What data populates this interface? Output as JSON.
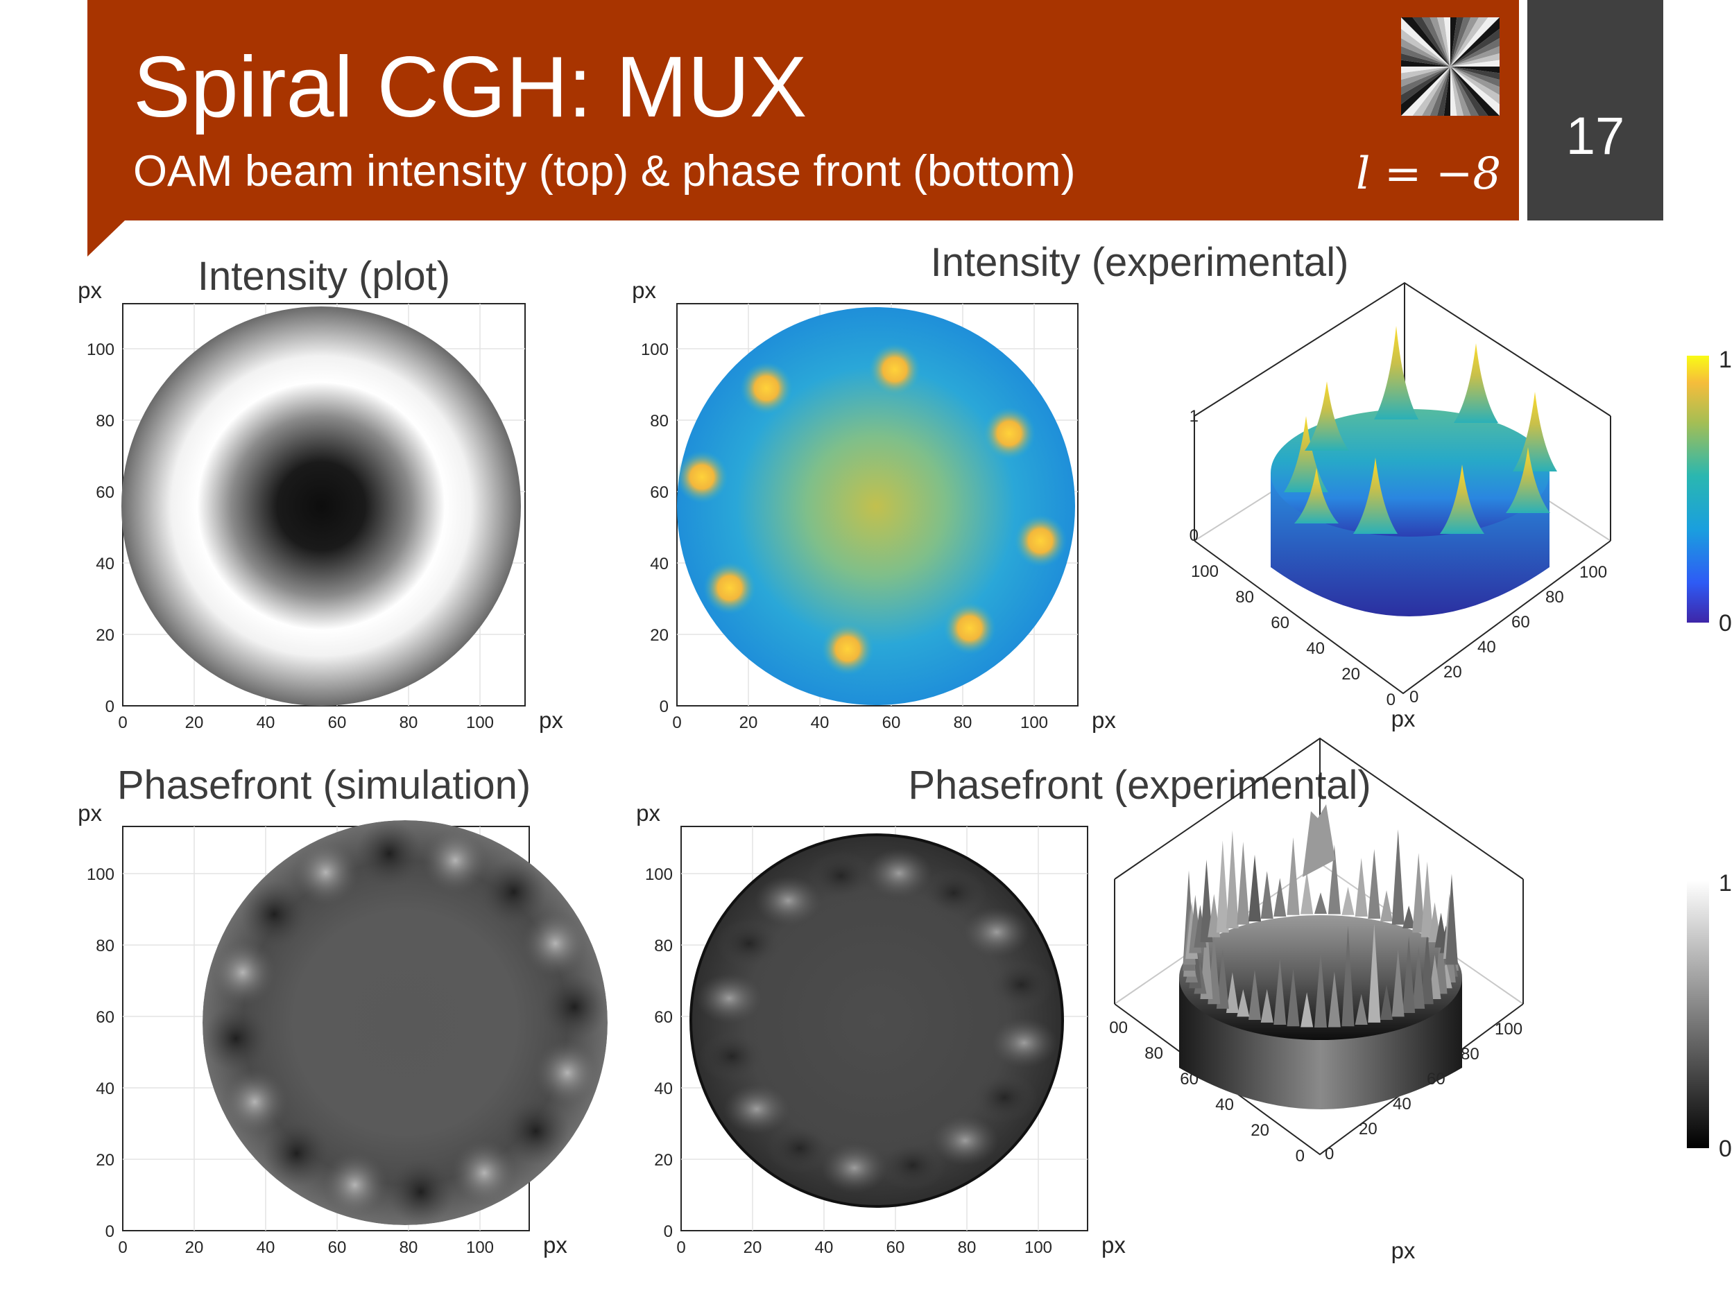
{
  "slide": {
    "title": "Spiral CGH: MUX",
    "subtitle": "OAM beam intensity (top) & phase front (bottom)",
    "equation": "l = −8",
    "page_number": "17"
  },
  "colors": {
    "header_bg": "#a83400",
    "page_box_bg": "#404040",
    "text_on_dark": "#ffffff"
  },
  "panels": {
    "intensity_plot": {
      "title": "Intensity (plot)",
      "xunit": "px",
      "yunit": "px",
      "xticks": [
        "0",
        "20",
        "40",
        "60",
        "80",
        "100"
      ],
      "yticks": [
        "0",
        "20",
        "40",
        "60",
        "80",
        "100"
      ]
    },
    "intensity_experimental": {
      "title": "Intensity (experimental)",
      "xunit": "px",
      "yunit": "px",
      "xticks": [
        "0",
        "20",
        "40",
        "60",
        "80",
        "100"
      ],
      "yticks": [
        "0",
        "20",
        "40",
        "60",
        "80",
        "100"
      ],
      "surface_z_ticks": [
        "0",
        "1"
      ],
      "surface_left_ticks": [
        "100",
        "80",
        "60",
        "40",
        "20",
        "0"
      ],
      "surface_right_ticks": [
        "0",
        "20",
        "40",
        "60",
        "80",
        "100"
      ],
      "surface_axis_label": "px",
      "colorbar": {
        "min_label": "0",
        "max_label": "1",
        "colormap": "parula"
      }
    },
    "phasefront_simulation": {
      "title": "Phasefront (simulation)",
      "xunit": "px",
      "yunit": "px",
      "xticks": [
        "0",
        "20",
        "40",
        "60",
        "80",
        "100"
      ],
      "yticks": [
        "0",
        "20",
        "40",
        "60",
        "80",
        "100"
      ]
    },
    "phasefront_experimental": {
      "title": "Phasefront (experimental)",
      "xunit": "px",
      "yunit": "px",
      "xticks": [
        "0",
        "20",
        "40",
        "60",
        "80",
        "100"
      ],
      "yticks": [
        "0",
        "20",
        "40",
        "60",
        "80",
        "100"
      ],
      "surface_left_ticks": [
        "00",
        "80",
        "60",
        "40",
        "20",
        "0"
      ],
      "surface_right_ticks": [
        "0",
        "20",
        "40",
        "60",
        "80",
        "100"
      ],
      "surface_axis_label": "px",
      "colorbar": {
        "min_label": "0",
        "max_label": "1",
        "colormap": "gray"
      }
    }
  }
}
